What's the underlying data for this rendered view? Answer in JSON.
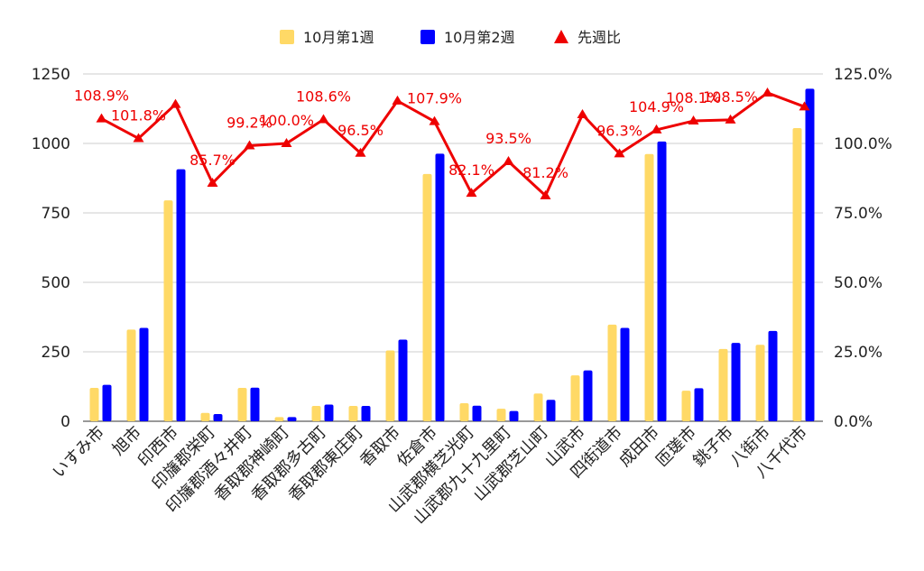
{
  "chart_data": {
    "type": "bar",
    "categories": [
      "いすみ市",
      "旭市",
      "印西市",
      "印旛郡栄町",
      "印旛郡酒々井町",
      "香取郡神崎町",
      "香取郡多古町",
      "香取郡東庄町",
      "香取市",
      "佐倉市",
      "山武郡横芝光町",
      "山武郡九十九里町",
      "山武郡芝山町",
      "山武市",
      "四街道市",
      "成田市",
      "匝瑳市",
      "銚子市",
      "八街市",
      "八千代市"
    ],
    "series": [
      {
        "name": "10月第1週",
        "type": "bar",
        "axis": "left",
        "color": "#ffd966",
        "values": [
          120,
          330,
          795,
          30,
          120,
          15,
          55,
          55,
          255,
          890,
          65,
          45,
          100,
          165,
          348,
          962,
          110,
          260,
          275,
          1055
        ]
      },
      {
        "name": "10月第2週",
        "type": "bar",
        "axis": "left",
        "color": "#0000ff",
        "values": [
          131,
          336,
          907,
          26,
          121,
          15,
          60,
          55,
          294,
          963,
          56,
          37,
          77,
          183,
          336,
          1007,
          119,
          282,
          325,
          1197
        ]
      },
      {
        "name": "先週比",
        "type": "line",
        "axis": "right",
        "color": "#ee0000",
        "marker": "triangle",
        "values": [
          108.9,
          101.8,
          114.1,
          85.7,
          99.2,
          100.0,
          108.6,
          96.5,
          115.3,
          107.9,
          82.1,
          93.5,
          81.2,
          110.4,
          96.3,
          104.9,
          108.1,
          108.5,
          118.2,
          113.2
        ],
        "labels": [
          "108.9%",
          "101.8%",
          "",
          "85.7%",
          "99.2%",
          "100.0%",
          "108.6%",
          "96.5%",
          "",
          "107.9%",
          "82.1%",
          "93.5%",
          "81.2%",
          "",
          "96.3%",
          "104.9%",
          "108.1%",
          "108.5%",
          "",
          ""
        ]
      }
    ],
    "y_left": {
      "min": 0,
      "max": 1250,
      "ticks": [
        "0",
        "250",
        "500",
        "750",
        "1000",
        "1250"
      ]
    },
    "y_right": {
      "min": 0,
      "max": 125,
      "ticks": [
        "0.0%",
        "25.0%",
        "50.0%",
        "75.0%",
        "100.0%",
        "125.0%"
      ]
    },
    "legend": {
      "position": "top",
      "items": [
        "10月第1週",
        "10月第2週",
        "先週比"
      ]
    },
    "grid": true
  }
}
